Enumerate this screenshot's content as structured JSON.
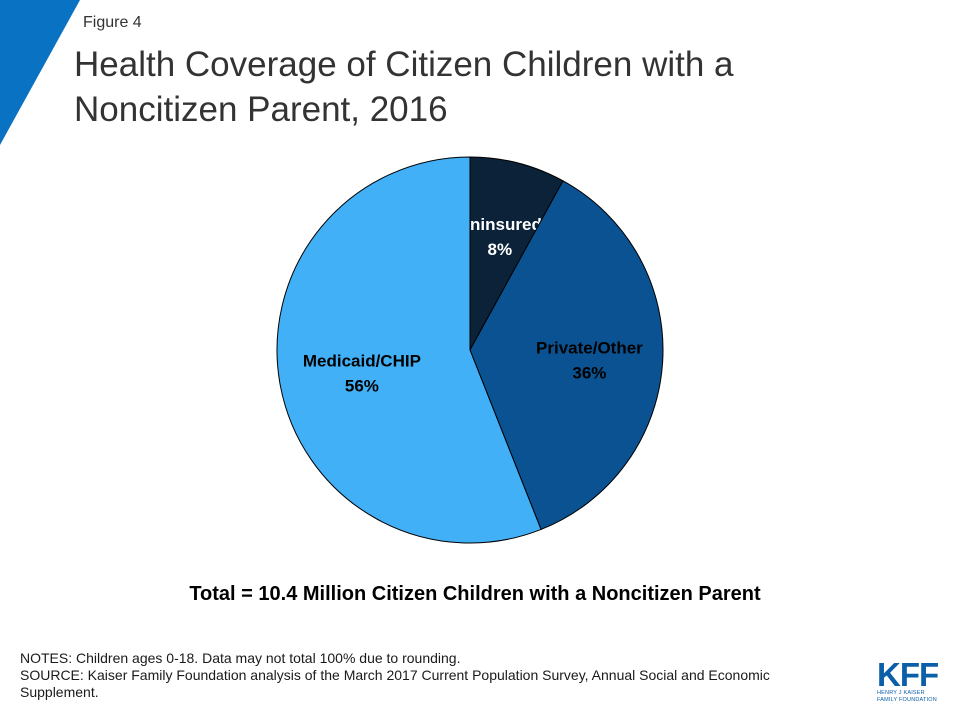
{
  "figure_label": "Figure 4",
  "title": "Health Coverage of Citizen Children with a Noncitizen Parent, 2016",
  "chart_data": {
    "type": "pie",
    "slices": [
      {
        "label": "Uninsured",
        "value": 8,
        "value_label": "8%",
        "color": "#0b2239",
        "label_color": "#ffffff"
      },
      {
        "label": "Private/Other",
        "value": 36,
        "value_label": "36%",
        "color": "#0a5291",
        "label_color": "#000000"
      },
      {
        "label": "Medicaid/CHIP",
        "value": 56,
        "value_label": "56%",
        "color": "#41b0f7",
        "label_color": "#000000"
      }
    ],
    "start": "12 o'clock",
    "direction": "clockwise"
  },
  "total_text": "Total = 10.4 Million Citizen Children with a Noncitizen Parent",
  "notes": [
    "NOTES: Children ages 0-18. Data may not total 100% due to rounding.",
    "SOURCE: Kaiser Family Foundation analysis of the March 2017 Current Population Survey, Annual Social and Economic Supplement."
  ],
  "logo": {
    "mark": "KFF",
    "subtitle_line1": "HENRY J KAISER",
    "subtitle_line2": "FAMILY FOUNDATION"
  },
  "colors": {
    "accent": "#0a72c2",
    "title": "#333333"
  }
}
